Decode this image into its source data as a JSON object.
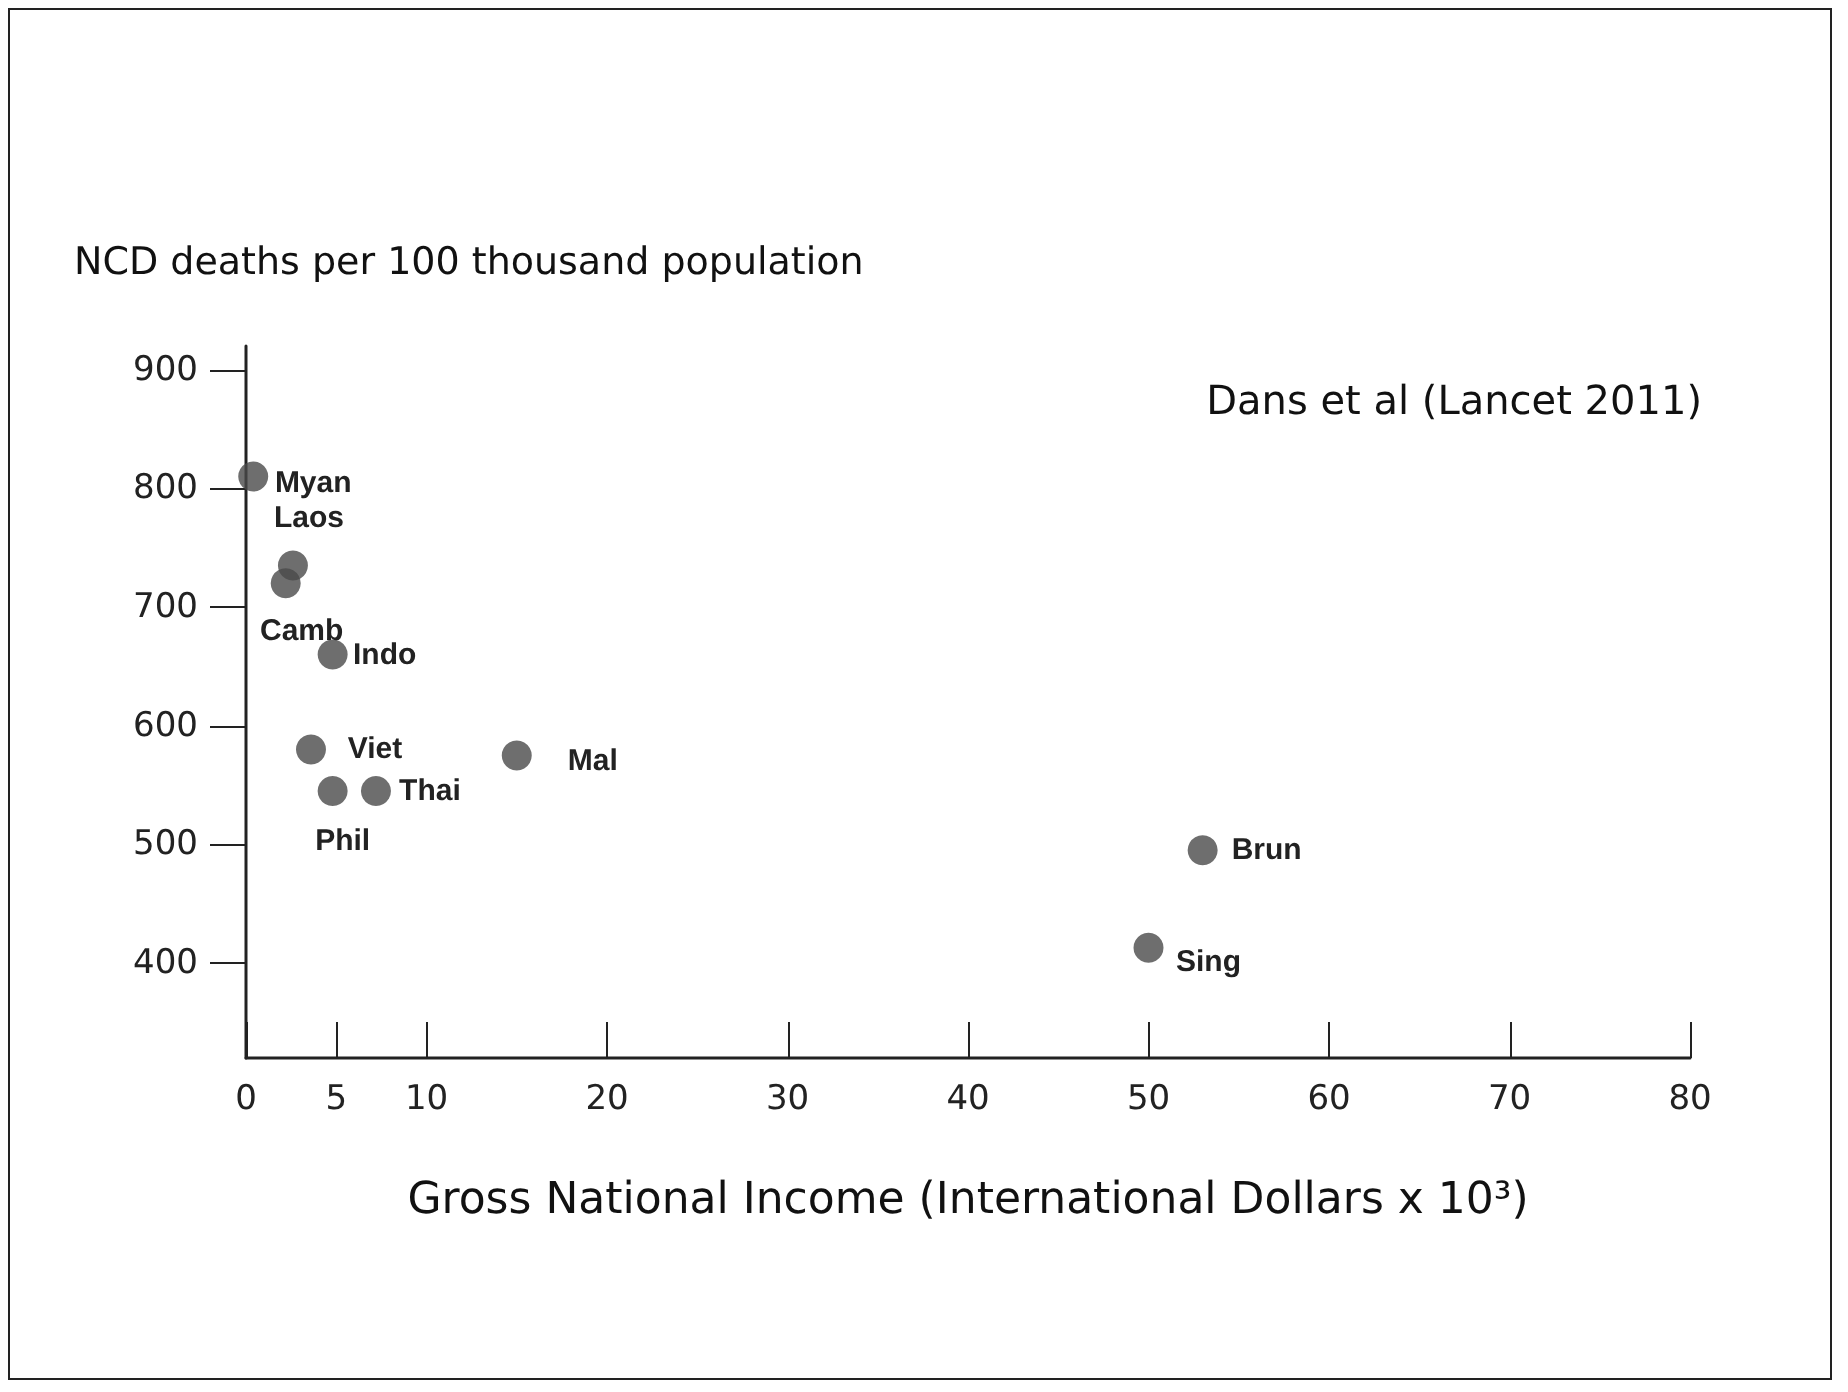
{
  "chart_data": {
    "type": "scatter",
    "ylabel": "NCD deaths per 100 thousand population",
    "xlabel": "Gross National Income (International Dollars x 10³)",
    "annotations": [
      "Dans et al (Lancet 2011)",
      {
        "text": "Myan",
        "x": 0.4,
        "y": 810
      },
      {
        "text": "Camb",
        "x": 2.2,
        "y": 720
      },
      {
        "text": "Laos",
        "x": 2.6,
        "y": 735
      },
      {
        "text": "Indo",
        "x": 4.8,
        "y": 660
      },
      {
        "text": "Viet",
        "x": 3.6,
        "y": 580
      },
      {
        "text": "Phil",
        "x": 4.8,
        "y": 545
      },
      {
        "text": "Thai",
        "x": 7.2,
        "y": 545
      },
      {
        "text": "Mal",
        "x": 15,
        "y": 575
      },
      {
        "text": "Brun",
        "x": 53,
        "y": 495
      },
      {
        "text": "Sing",
        "x": 50,
        "y": 413
      }
    ],
    "x": [
      0.4,
      2.2,
      2.6,
      4.8,
      3.6,
      4.8,
      7.2,
      15,
      53,
      50
    ],
    "values": [
      810,
      720,
      735,
      660,
      580,
      545,
      545,
      575,
      495,
      413
    ],
    "color": "#4a4a4a",
    "marker": "circle",
    "grid": false,
    "xlim": [
      0,
      80
    ],
    "xticks": [
      0,
      5,
      10,
      20,
      30,
      40,
      50,
      60,
      70,
      80
    ],
    "ylim": [
      320,
      920
    ],
    "yticks": [
      400,
      500,
      600,
      700,
      800,
      900
    ]
  }
}
